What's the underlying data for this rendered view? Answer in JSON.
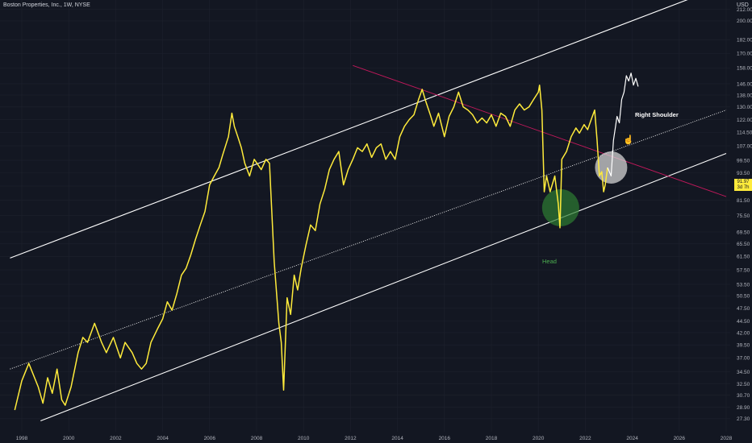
{
  "header": {
    "symbol": "Boston Properties, Inc., 1W, NYSE",
    "currency": "USD"
  },
  "last_price": {
    "value": "91.97",
    "countdown": "3d 7h"
  },
  "annotations": {
    "right_shoulder": "Right Shoulder",
    "head": "Head"
  },
  "colors": {
    "background": "#131722",
    "price": "#ffeb3b",
    "projection": "#ffffff",
    "channel": "#ffffff",
    "resistance": "#c2185b",
    "head_marker": "#2e7d32",
    "shoulder_marker": "#d9d9d9"
  },
  "chart_data": {
    "type": "line",
    "scale": "log",
    "xlim": [
      "1997-06",
      "2028-01"
    ],
    "ylim": [
      26,
      230
    ],
    "y_ticks": [
      27.3,
      28.9,
      30.7,
      32.5,
      34.5,
      37.0,
      39.5,
      42.0,
      44.5,
      47.5,
      50.5,
      53.5,
      57.5,
      61.5,
      65.5,
      69.5,
      75.5,
      81.5,
      87.5,
      93.5,
      99.5,
      107.0,
      114.5,
      122.0,
      130.0,
      138.0,
      146.0,
      158.0,
      170.0,
      182.0,
      200.0,
      212.0
    ],
    "x_ticks": [
      "1998",
      "2000",
      "2002",
      "2004",
      "2006",
      "2008",
      "2010",
      "2012",
      "2014",
      "2016",
      "2018",
      "2020",
      "2022",
      "2024",
      "2026",
      "2028"
    ],
    "series": [
      {
        "points": [
          [
            1997.7,
            28.5
          ],
          [
            1998.0,
            33.0
          ],
          [
            1998.3,
            36.0
          ],
          [
            1998.7,
            32.0
          ],
          [
            1998.9,
            29.5
          ],
          [
            1999.1,
            33.5
          ],
          [
            1999.3,
            31.0
          ],
          [
            1999.5,
            35.0
          ],
          [
            1999.7,
            30.0
          ],
          [
            1999.85,
            29.2
          ],
          [
            2000.1,
            32.0
          ],
          [
            2000.4,
            38.0
          ],
          [
            2000.6,
            41.0
          ],
          [
            2000.8,
            40.0
          ],
          [
            2001.1,
            44.0
          ],
          [
            2001.4,
            40.0
          ],
          [
            2001.6,
            38.0
          ],
          [
            2001.9,
            41.0
          ],
          [
            2002.2,
            37.0
          ],
          [
            2002.4,
            40.0
          ],
          [
            2002.7,
            38.0
          ],
          [
            2002.9,
            36.0
          ],
          [
            2003.1,
            35.0
          ],
          [
            2003.3,
            36.0
          ],
          [
            2003.5,
            40.0
          ],
          [
            2003.8,
            43.0
          ],
          [
            2004.0,
            45.0
          ],
          [
            2004.2,
            49.0
          ],
          [
            2004.4,
            47.0
          ],
          [
            2004.6,
            51.0
          ],
          [
            2004.8,
            56.0
          ],
          [
            2005.0,
            58.0
          ],
          [
            2005.2,
            62.0
          ],
          [
            2005.4,
            67.0
          ],
          [
            2005.6,
            72.0
          ],
          [
            2005.8,
            77.0
          ],
          [
            2006.0,
            88.0
          ],
          [
            2006.2,
            92.0
          ],
          [
            2006.4,
            96.0
          ],
          [
            2006.55,
            102.0
          ],
          [
            2006.8,
            112.0
          ],
          [
            2006.95,
            126.0
          ],
          [
            2007.05,
            118.0
          ],
          [
            2007.2,
            112.0
          ],
          [
            2007.35,
            106.0
          ],
          [
            2007.5,
            98.0
          ],
          [
            2007.7,
            92.0
          ],
          [
            2007.9,
            100.0
          ],
          [
            2008.2,
            95.0
          ],
          [
            2008.4,
            100.0
          ],
          [
            2008.55,
            98.0
          ],
          [
            2008.75,
            60.0
          ],
          [
            2008.95,
            44.0
          ],
          [
            2009.05,
            40.0
          ],
          [
            2009.15,
            31.5
          ],
          [
            2009.3,
            50.0
          ],
          [
            2009.45,
            46.0
          ],
          [
            2009.6,
            56.0
          ],
          [
            2009.75,
            52.0
          ],
          [
            2009.9,
            58.0
          ],
          [
            2010.1,
            65.0
          ],
          [
            2010.3,
            72.0
          ],
          [
            2010.5,
            70.0
          ],
          [
            2010.7,
            80.0
          ],
          [
            2010.9,
            86.0
          ],
          [
            2011.1,
            95.0
          ],
          [
            2011.3,
            100.0
          ],
          [
            2011.5,
            104.0
          ],
          [
            2011.7,
            88.0
          ],
          [
            2011.9,
            95.0
          ],
          [
            2012.1,
            100.0
          ],
          [
            2012.3,
            106.0
          ],
          [
            2012.5,
            104.0
          ],
          [
            2012.7,
            108.0
          ],
          [
            2012.9,
            101.0
          ],
          [
            2013.1,
            106.0
          ],
          [
            2013.3,
            108.0
          ],
          [
            2013.5,
            100.0
          ],
          [
            2013.7,
            104.0
          ],
          [
            2013.9,
            100.0
          ],
          [
            2014.1,
            112.0
          ],
          [
            2014.3,
            118.0
          ],
          [
            2014.5,
            122.0
          ],
          [
            2014.7,
            125.0
          ],
          [
            2014.9,
            135.0
          ],
          [
            2015.05,
            142.0
          ],
          [
            2015.2,
            134.0
          ],
          [
            2015.4,
            125.0
          ],
          [
            2015.55,
            118.0
          ],
          [
            2015.75,
            126.0
          ],
          [
            2016.0,
            112.0
          ],
          [
            2016.2,
            124.0
          ],
          [
            2016.4,
            130.0
          ],
          [
            2016.6,
            140.0
          ],
          [
            2016.8,
            130.0
          ],
          [
            2017.0,
            128.0
          ],
          [
            2017.2,
            125.0
          ],
          [
            2017.4,
            120.0
          ],
          [
            2017.6,
            123.0
          ],
          [
            2017.8,
            120.0
          ],
          [
            2018.0,
            125.0
          ],
          [
            2018.2,
            118.0
          ],
          [
            2018.4,
            126.0
          ],
          [
            2018.6,
            124.0
          ],
          [
            2018.8,
            118.0
          ],
          [
            2019.0,
            128.0
          ],
          [
            2019.2,
            132.0
          ],
          [
            2019.4,
            128.0
          ],
          [
            2019.6,
            130.0
          ],
          [
            2019.8,
            135.0
          ],
          [
            2020.0,
            140.0
          ],
          [
            2020.05,
            145.0
          ],
          [
            2020.15,
            128.0
          ],
          [
            2020.25,
            85.0
          ],
          [
            2020.35,
            92.0
          ],
          [
            2020.5,
            85.0
          ],
          [
            2020.7,
            92.0
          ],
          [
            2020.85,
            80.0
          ],
          [
            2020.92,
            71.0
          ],
          [
            2021.0,
            100.0
          ],
          [
            2021.2,
            104.0
          ],
          [
            2021.4,
            112.0
          ],
          [
            2021.6,
            117.0
          ],
          [
            2021.75,
            114.0
          ],
          [
            2021.95,
            119.0
          ],
          [
            2022.1,
            116.0
          ],
          [
            2022.25,
            122.0
          ],
          [
            2022.4,
            128.0
          ],
          [
            2022.5,
            110.0
          ],
          [
            2022.6,
            92.0
          ],
          [
            2022.7,
            94.0
          ],
          [
            2022.78,
            85.0
          ],
          [
            2022.85,
            88.0
          ],
          [
            2022.95,
            96.0
          ]
        ]
      },
      {
        "points": [
          [
            2022.95,
            96.0
          ],
          [
            2023.1,
            92.0
          ],
          [
            2023.2,
            110.0
          ],
          [
            2023.35,
            124.0
          ],
          [
            2023.45,
            120.0
          ],
          [
            2023.55,
            135.0
          ],
          [
            2023.65,
            140.0
          ],
          [
            2023.75,
            152.0
          ],
          [
            2023.85,
            148.0
          ],
          [
            2023.95,
            154.0
          ],
          [
            2024.05,
            145.0
          ],
          [
            2024.15,
            150.0
          ],
          [
            2024.25,
            144.0
          ]
        ]
      }
    ],
    "channel_lines": [
      {
        "name": "upper",
        "points": [
          [
            1997.5,
            61.0
          ],
          [
            2027.1,
            230.0
          ]
        ]
      },
      {
        "name": "middle",
        "points": [
          [
            1997.5,
            35.0
          ],
          [
            2028.0,
            128.0
          ]
        ]
      },
      {
        "name": "lower",
        "points": [
          [
            1998.8,
            27.0
          ],
          [
            2028.0,
            103.0
          ]
        ]
      }
    ],
    "resistance_line": {
      "points": [
        [
          2012.1,
          160.0
        ],
        [
          2028.0,
          83.0
        ]
      ]
    },
    "markers": [
      {
        "label": "Head",
        "x": 2020.95,
        "y": 78.5
      },
      {
        "label": "Right Shoulder",
        "x": 2023.1,
        "y": 96.0
      }
    ]
  }
}
